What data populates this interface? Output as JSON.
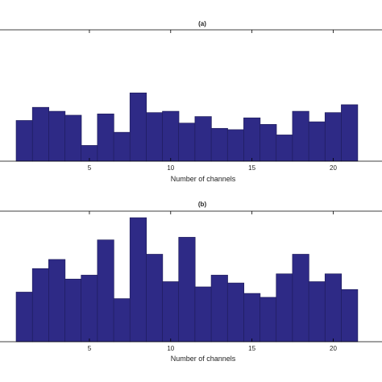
{
  "colors": {
    "bar_fill": "#2e2a86",
    "axis": "#000000",
    "background": "#ffffff"
  },
  "chart_data": [
    {
      "type": "bar",
      "title": "(a)",
      "xlabel": "Number of channels",
      "ylabel": "",
      "grid": false,
      "x": [
        1,
        2,
        3,
        4,
        5,
        6,
        7,
        8,
        9,
        10,
        11,
        12,
        13,
        14,
        15,
        16,
        17,
        18,
        19,
        20,
        21
      ],
      "values": [
        0.31,
        0.41,
        0.38,
        0.35,
        0.12,
        0.36,
        0.22,
        0.52,
        0.37,
        0.38,
        0.29,
        0.34,
        0.25,
        0.24,
        0.33,
        0.28,
        0.2,
        0.38,
        0.3,
        0.37,
        0.43
      ],
      "xticks": [
        5,
        10,
        15,
        20
      ],
      "xlim": [
        -0.5,
        23
      ],
      "ylim": [
        0,
        1
      ]
    },
    {
      "type": "bar",
      "title": "(b)",
      "xlabel": "Number of channels",
      "ylabel": "",
      "grid": false,
      "x": [
        1,
        2,
        3,
        4,
        5,
        6,
        7,
        8,
        9,
        10,
        11,
        12,
        13,
        14,
        15,
        16,
        17,
        18,
        19,
        20,
        21
      ],
      "values": [
        0.38,
        0.56,
        0.63,
        0.48,
        0.51,
        0.78,
        0.33,
        0.95,
        0.67,
        0.46,
        0.8,
        0.42,
        0.51,
        0.45,
        0.37,
        0.34,
        0.52,
        0.67,
        0.46,
        0.52,
        0.4
      ],
      "xticks": [
        5,
        10,
        15,
        20
      ],
      "xlim": [
        -0.5,
        23
      ],
      "ylim": [
        0,
        1
      ]
    }
  ]
}
